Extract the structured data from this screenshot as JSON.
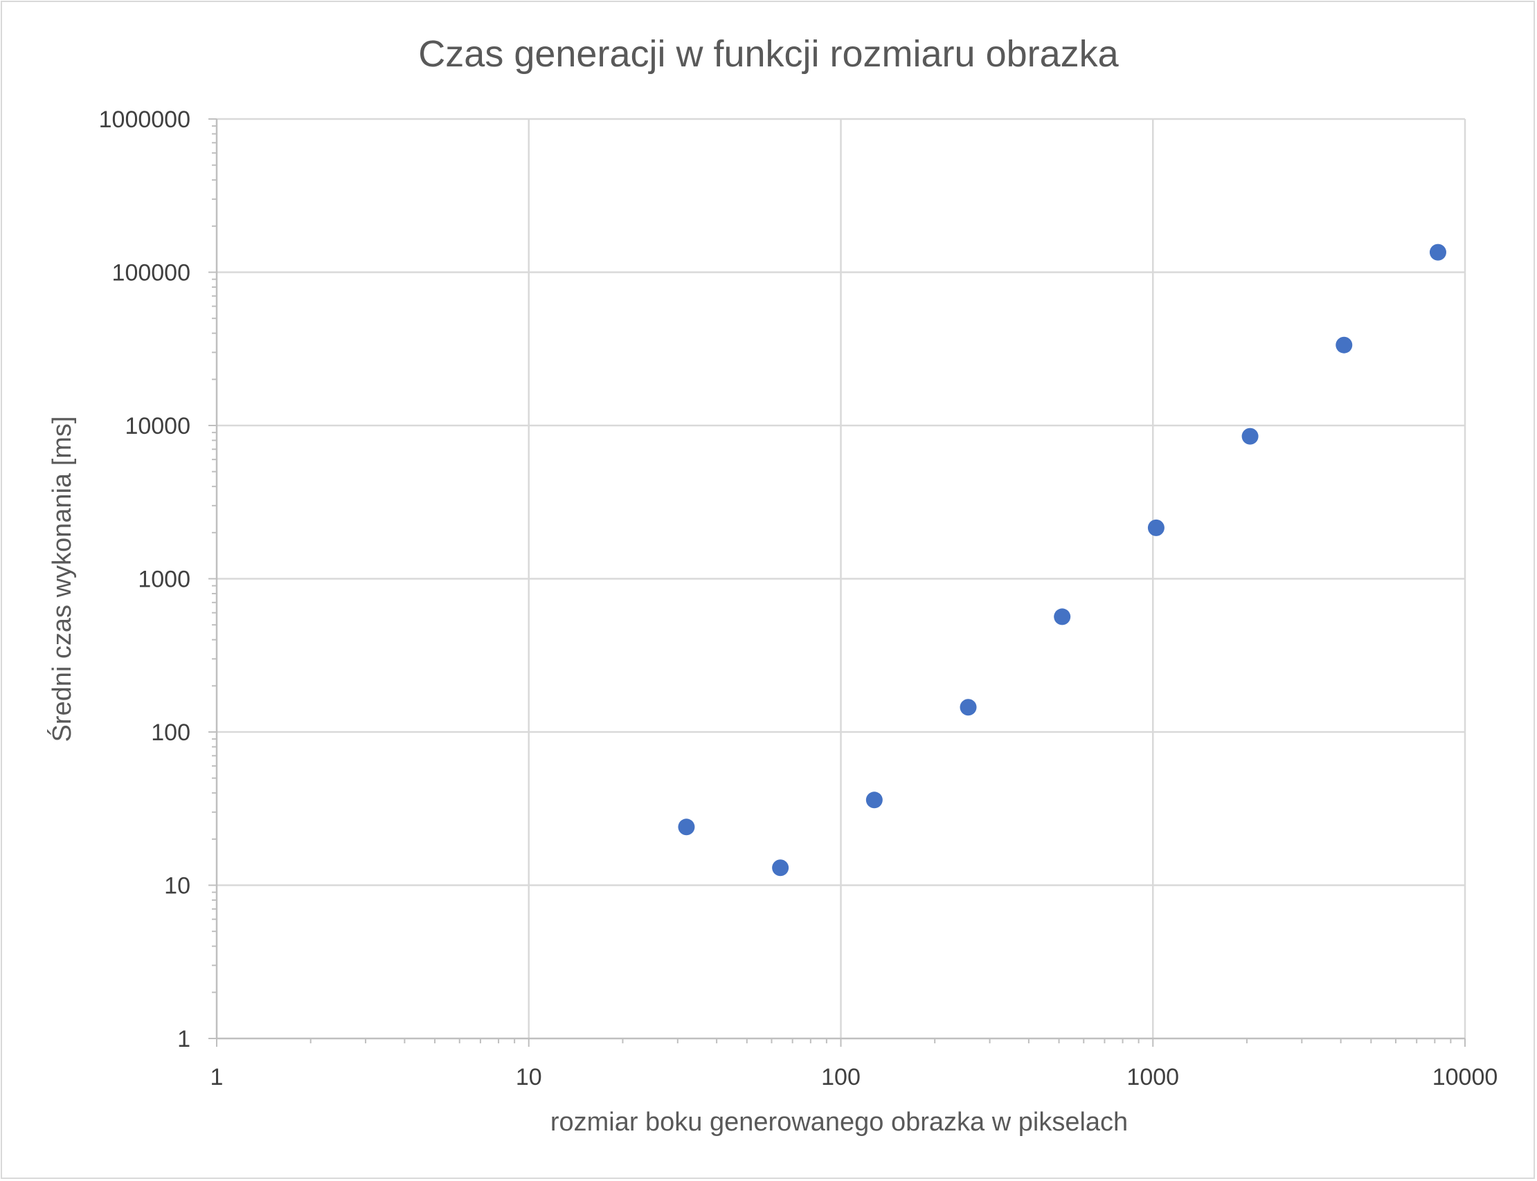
{
  "chart_data": {
    "type": "scatter",
    "title": "Czas generacji w funkcji rozmiaru obrazka",
    "xlabel": "rozmiar boku generowanego obrazka w pikselach",
    "ylabel": "Średni czas wykonania [ms]",
    "x_scale": "log",
    "y_scale": "log",
    "xlim": [
      1,
      10000
    ],
    "ylim": [
      1,
      1000000
    ],
    "x_ticks": [
      "1",
      "10",
      "100",
      "1000",
      "10000"
    ],
    "y_ticks": [
      "1",
      "10",
      "100",
      "1000",
      "10000",
      "100000",
      "1000000"
    ],
    "grid": true,
    "legend": "none",
    "marker_color": "#4472C4",
    "points": [
      {
        "x": 32,
        "y": 24
      },
      {
        "x": 64,
        "y": 13
      },
      {
        "x": 128,
        "y": 36
      },
      {
        "x": 256,
        "y": 145
      },
      {
        "x": 512,
        "y": 565
      },
      {
        "x": 1024,
        "y": 2150
      },
      {
        "x": 2048,
        "y": 8500
      },
      {
        "x": 4096,
        "y": 33500
      },
      {
        "x": 8192,
        "y": 135000
      }
    ]
  }
}
